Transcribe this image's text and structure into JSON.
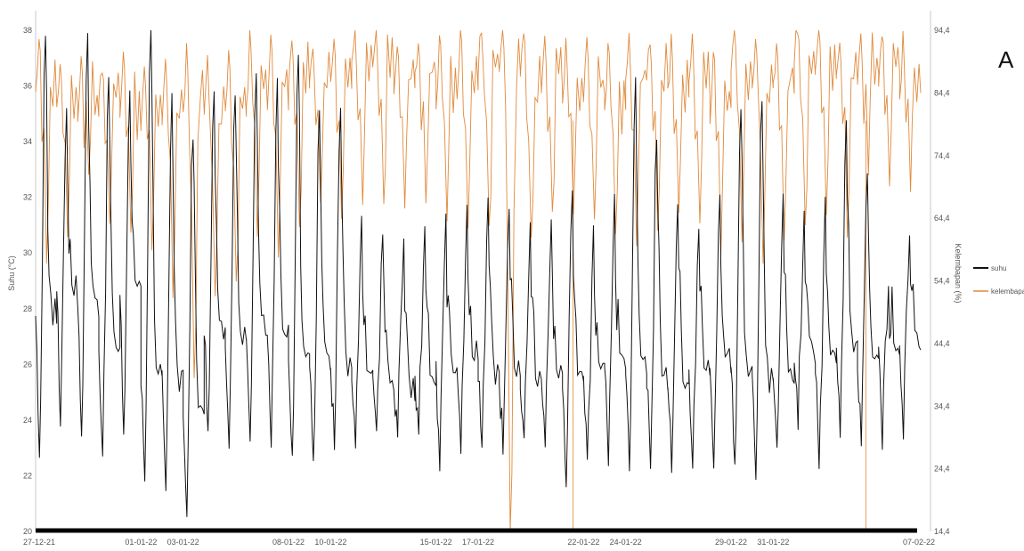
{
  "panel_label": "A",
  "colors": {
    "suhu": "#111111",
    "kelembapan": "#e08a3c",
    "axis": "#c8c8c8",
    "baseline": "#000000"
  },
  "chart_data": {
    "type": "line",
    "title": "",
    "xlabel": "",
    "ylabel": "Suhu (°C)",
    "y2label": "Kelembapan (%)",
    "grid": false,
    "legend_position": "right",
    "x_range": [
      "27-12-21",
      "07-02-22"
    ],
    "x_ticks": [
      "27-12-21",
      "01-01-22",
      "03-01-22",
      "08-01-22",
      "10-01-22",
      "15-01-22",
      "17-01-22",
      "22-01-22",
      "24-01-22",
      "29-01-22",
      "31-01-22",
      "07-02-22"
    ],
    "ylim": [
      20,
      38
    ],
    "y_ticks": [
      "20",
      "22",
      "24",
      "26",
      "28",
      "30",
      "32",
      "34",
      "36",
      "38"
    ],
    "y2lim": [
      14.4,
      94.4
    ],
    "y2_ticks": [
      "14,4",
      "24,4",
      "34,4",
      "44,4",
      "54,4",
      "64,4",
      "74,4",
      "84,4",
      "94,4"
    ],
    "days": [
      "27-12-21",
      "28-12-21",
      "29-12-21",
      "30-12-21",
      "31-12-21",
      "01-01-22",
      "02-01-22",
      "03-01-22",
      "04-01-22",
      "05-01-22",
      "06-01-22",
      "07-01-22",
      "08-01-22",
      "09-01-22",
      "10-01-22",
      "11-01-22",
      "12-01-22",
      "13-01-22",
      "14-01-22",
      "15-01-22",
      "16-01-22",
      "17-01-22",
      "18-01-22",
      "19-01-22",
      "20-01-22",
      "21-01-22",
      "22-01-22",
      "23-01-22",
      "24-01-22",
      "25-01-22",
      "26-01-22",
      "27-01-22",
      "28-01-22",
      "29-01-22",
      "30-01-22",
      "31-01-22",
      "01-02-22",
      "02-02-22",
      "03-02-22",
      "04-02-22",
      "05-02-22",
      "06-02-22"
    ],
    "series": [
      {
        "name": "suhu",
        "axis": "left",
        "daily_max": [
          38.1,
          35.2,
          37.8,
          36.3,
          35.8,
          38.2,
          35.5,
          34.4,
          36.0,
          35.8,
          36.5,
          36.0,
          36.9,
          35.1,
          34.9,
          31.1,
          31.0,
          30.6,
          31.2,
          31.3,
          31.5,
          32.0,
          31.5,
          31.0,
          31.2,
          32.2,
          30.7,
          31.8,
          36.1,
          34.2,
          32.0,
          31.1,
          31.9,
          35.2,
          35.8,
          31.8,
          31.2,
          31.7,
          35.0,
          33.2,
          29.1,
          30.9
        ],
        "daily_min": [
          22.8,
          23.6,
          23.2,
          22.9,
          23.5,
          22.0,
          21.8,
          20.7,
          23.4,
          23.2,
          23.3,
          23.3,
          22.6,
          22.4,
          23.1,
          23.2,
          23.4,
          23.4,
          23.2,
          22.4,
          22.8,
          22.8,
          23.1,
          23.0,
          22.8,
          21.5,
          22.5,
          22.5,
          22.3,
          22.5,
          22.4,
          22.4,
          22.3,
          22.3,
          22.2,
          22.7,
          23.8,
          22.2,
          23.6,
          23.4,
          23.1,
          23.3
        ],
        "night_level": [
          27.8,
          28.3,
          28.0,
          26.5,
          28.7,
          25.5,
          25.5,
          24.3,
          27.0,
          26.6,
          27.0,
          27.1,
          26.2,
          26.1,
          25.8,
          25.6,
          25.3,
          25.0,
          25.4,
          25.8,
          26.0,
          25.6,
          25.4,
          25.3,
          25.6,
          25.2,
          25.7,
          26.1,
          25.9,
          25.4,
          25.2,
          25.5,
          25.7,
          25.7,
          25.5,
          25.4,
          26.3,
          26.0,
          26.6,
          25.9,
          26.3,
          26.7
        ]
      },
      {
        "name": "kelembapan",
        "axis": "right",
        "daily_max": [
          93.5,
          90.0,
          91.0,
          89.0,
          91.0,
          88.0,
          90.0,
          92.0,
          89.0,
          91.0,
          94.0,
          93.0,
          94.0,
          92.0,
          93.0,
          94.0,
          94.0,
          93.0,
          93.0,
          94.0,
          94.0,
          95.0,
          95.0,
          94.0,
          94.0,
          93.0,
          93.0,
          93.0,
          93.0,
          93.0,
          93.0,
          93.0,
          92.0,
          94.0,
          94.0,
          92.0,
          95.0,
          96.0,
          93.0,
          94.0,
          94.0,
          93.0
        ],
        "daily_min": [
          58.0,
          60.0,
          70.0,
          63.0,
          61.0,
          59.0,
          52.0,
          40.0,
          51.0,
          54.0,
          60.0,
          59.0,
          63.0,
          66.0,
          65.0,
          66.0,
          68.0,
          66.0,
          67.0,
          64.0,
          63.0,
          62.0,
          14.4,
          60.0,
          64.0,
          64.0,
          63.0,
          62.0,
          60.0,
          62.0,
          65.0,
          64.0,
          59.0,
          60.0,
          58.0,
          62.0,
          63.0,
          65.0,
          62.0,
          72.0,
          70.0,
          70.0
        ]
      }
    ]
  }
}
